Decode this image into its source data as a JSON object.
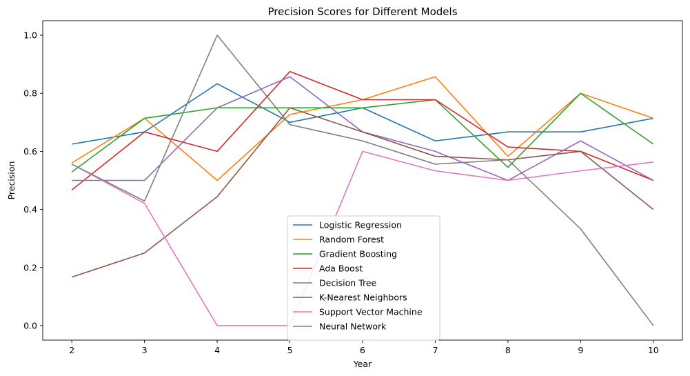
{
  "chart_data": {
    "type": "line",
    "title": "Precision Scores for Different Models",
    "xlabel": "Year",
    "ylabel": "Precision",
    "x": [
      2,
      3,
      4,
      5,
      6,
      7,
      8,
      9,
      10
    ],
    "xlim": [
      1.6,
      10.4
    ],
    "ylim": [
      -0.05,
      1.05
    ],
    "xticks": [
      "2",
      "3",
      "4",
      "5",
      "6",
      "7",
      "8",
      "9",
      "10"
    ],
    "yticks": [
      "0.0",
      "0.2",
      "0.4",
      "0.6",
      "0.8",
      "1.0"
    ],
    "grid": false,
    "legend_position": "bottom-center",
    "series": [
      {
        "name": "Logistic Regression",
        "color": "#1f77b4",
        "values": [
          0.625,
          0.667,
          0.833,
          0.7,
          0.75,
          0.636,
          0.667,
          0.667,
          0.714
        ]
      },
      {
        "name": "Random Forest",
        "color": "#ff7f0e",
        "values": [
          0.56,
          0.714,
          0.5,
          0.727,
          0.778,
          0.857,
          0.583,
          0.8,
          0.714
        ]
      },
      {
        "name": "Gradient Boosting",
        "color": "#2ca02c",
        "values": [
          0.529,
          0.714,
          0.75,
          0.75,
          0.75,
          0.778,
          0.545,
          0.8,
          0.625
        ]
      },
      {
        "name": "Ada Boost",
        "color": "#d62728",
        "values": [
          0.467,
          0.667,
          0.6,
          0.875,
          0.778,
          0.778,
          0.615,
          0.6,
          0.5
        ]
      },
      {
        "name": "Decision Tree",
        "color": "#9467bd",
        "values": [
          0.5,
          0.5,
          0.75,
          0.857,
          0.667,
          0.6,
          0.5,
          0.636,
          0.5
        ]
      },
      {
        "name": "K-Nearest Neighbors",
        "color": "#8c564b",
        "values": [
          0.167,
          0.25,
          0.444,
          0.75,
          0.667,
          0.583,
          0.571,
          0.6,
          0.4
        ]
      },
      {
        "name": "Support Vector Machine",
        "color": "#e377c2",
        "values": [
          0.556,
          0.421,
          0.0,
          0.0,
          0.6,
          0.533,
          0.5,
          0.533,
          0.563
        ]
      },
      {
        "name": "Neural Network",
        "color": "#7f7f7f",
        "values": [
          0.556,
          0.429,
          1.0,
          0.692,
          0.636,
          0.556,
          0.571,
          0.333,
          0.0
        ]
      }
    ]
  }
}
